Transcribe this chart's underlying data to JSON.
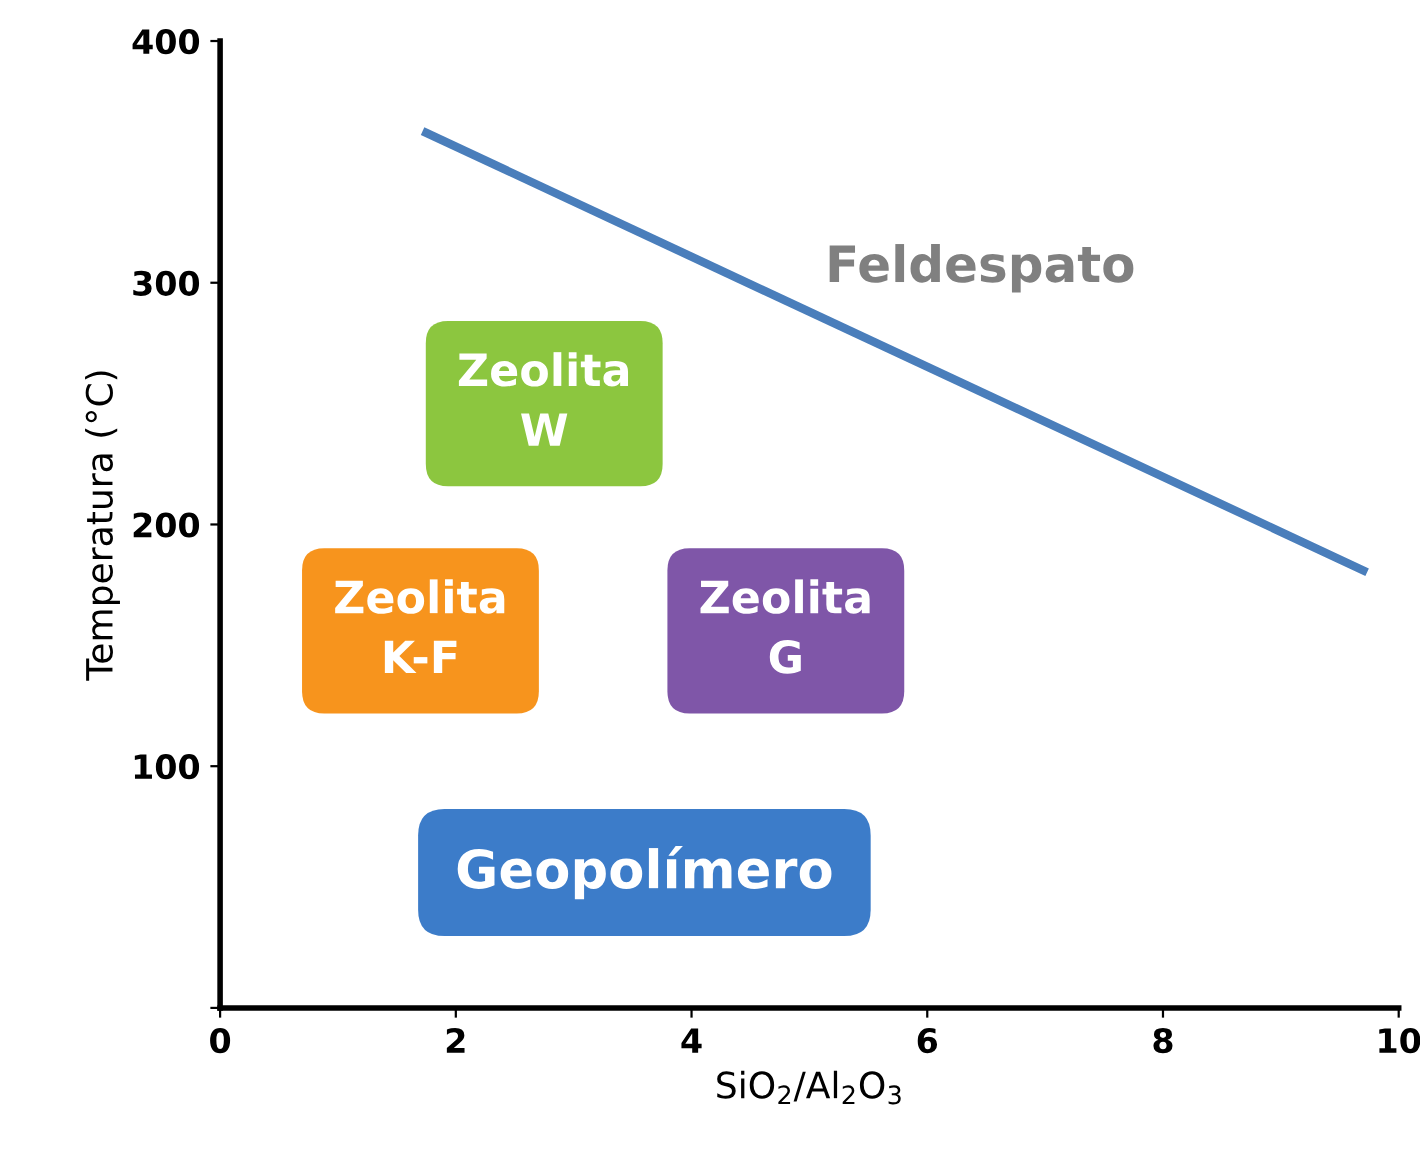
{
  "chart_data": {
    "type": "line",
    "xlabel": "SiO$_{2}$/Al$_{2}$O$_{3}$",
    "ylabel": "Temperatura (°C)",
    "series": [
      {
        "x": [
          1.75,
          9.7
        ],
        "values": [
          362,
          181
        ],
        "color": "#4a7ebb"
      }
    ],
    "xlim": [
      0,
      10
    ],
    "ylim": [
      0,
      400
    ],
    "xticks": [
      0,
      2,
      4,
      6,
      8,
      10
    ],
    "yticks": [
      {
        "value": 0,
        "label": null
      },
      100,
      200,
      300,
      400
    ],
    "annotations": [
      "Feldespato",
      "Zeolita\nW",
      "Zeolita\nK-F",
      "Zeolita\nG",
      "Geopolímero"
    ],
    "colors": [
      "#808080",
      "#8cc63f",
      "#f7941d",
      "#7f56a8",
      "#3c7cc9"
    ],
    "grid": false,
    "legend": false,
    "marker": "none",
    "line_style": "solid"
  }
}
